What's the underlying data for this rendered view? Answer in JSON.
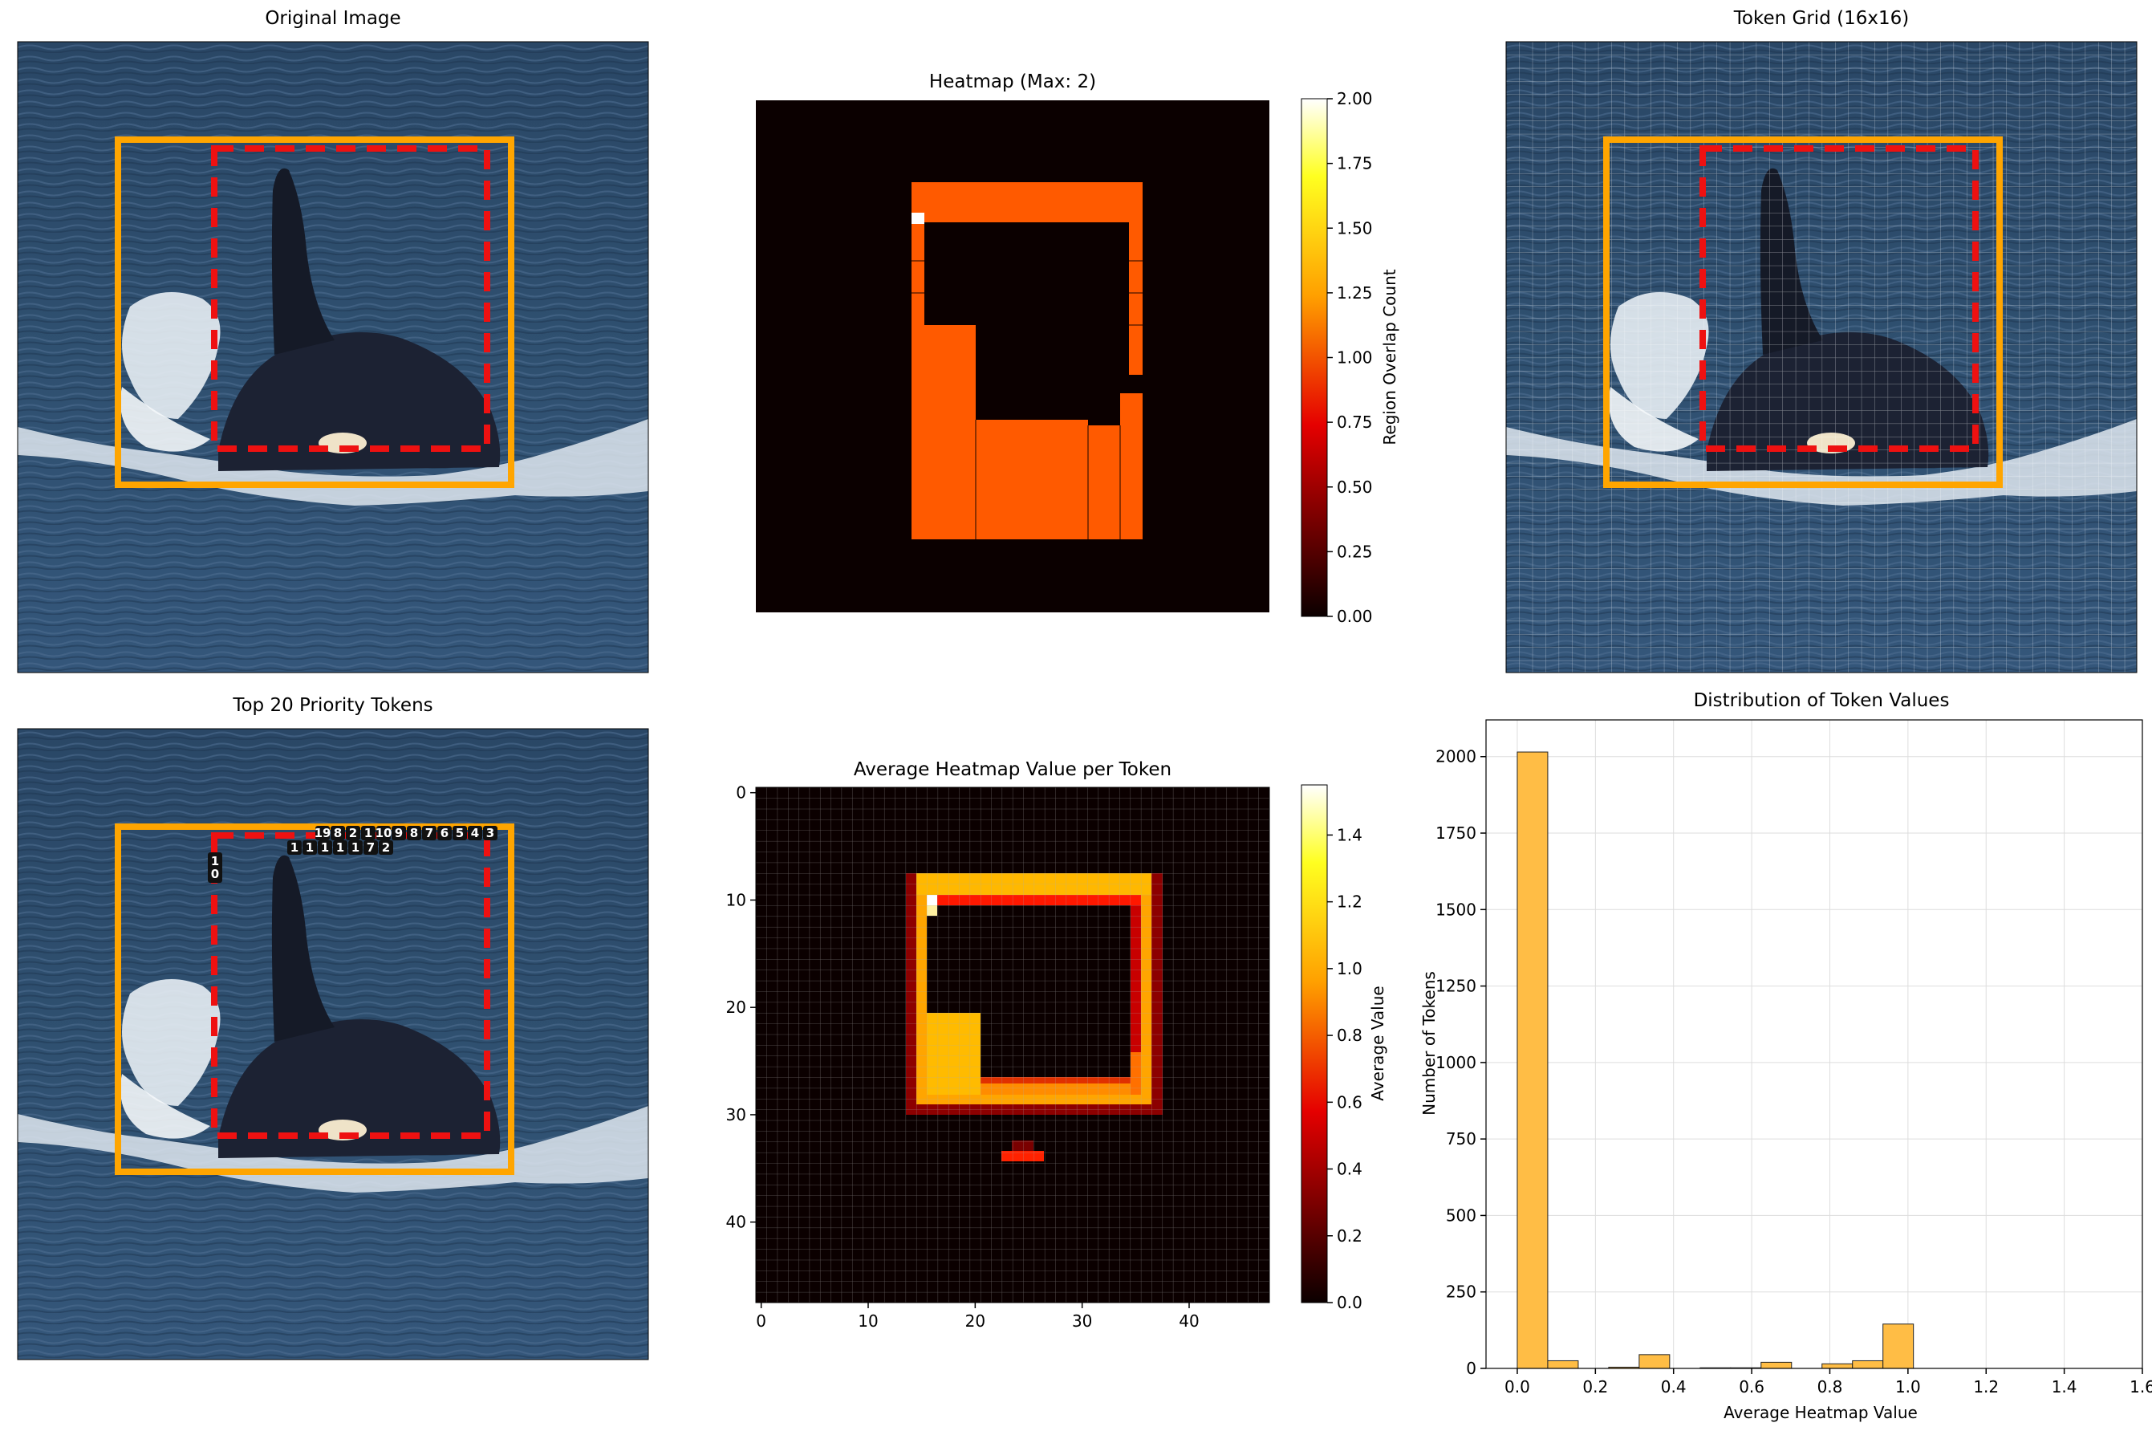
{
  "panels": {
    "original": {
      "title": "Original Image"
    },
    "heatmap": {
      "title": "Heatmap (Max: 2)",
      "colorbar_label": "Region Overlap Count"
    },
    "token_grid": {
      "title": "Token Grid (16x16)"
    },
    "top_tokens": {
      "title": "Top 20 Priority Tokens",
      "labels_row1": [
        "19",
        "8",
        "2",
        "1",
        "10",
        "9",
        "8",
        "7",
        "6",
        "5",
        "4",
        "3"
      ],
      "labels_row2": [
        "1",
        "1",
        "1",
        "1",
        "1",
        "7",
        "2"
      ],
      "labels_side": [
        "1",
        "0"
      ]
    },
    "avg_heatmap": {
      "title": "Average Heatmap Value per Token",
      "colorbar_label": "Average Value"
    },
    "distribution": {
      "title": "Distribution of Token Values",
      "xlabel": "Average Heatmap Value",
      "ylabel": "Number of Tokens"
    }
  },
  "colors": {
    "orange_box": "#ffa500",
    "red_dashed": "#ee1111",
    "heat_fill": "#ff5a00",
    "hist_fill": "#ffbd45",
    "sea": "#2e4b6b"
  },
  "chart_data": [
    {
      "type": "heatmap",
      "title": "Heatmap (Max: 2)",
      "colorbar_label": "Region Overlap Count",
      "colorbar_range": [
        0,
        2
      ],
      "colorbar_ticks": [
        "0.00",
        "0.25",
        "0.50",
        "0.75",
        "1.00",
        "1.25",
        "1.50",
        "1.75",
        "2.00"
      ],
      "max": 2
    },
    {
      "type": "heatmap",
      "title": "Average Heatmap Value per Token",
      "grid_size": [
        48,
        48
      ],
      "x_ticks": [
        "0",
        "10",
        "20",
        "30",
        "40"
      ],
      "y_ticks": [
        "0",
        "10",
        "20",
        "30",
        "40"
      ],
      "colorbar_label": "Average Value",
      "colorbar_range": [
        0,
        1.55
      ],
      "colorbar_ticks": [
        "0.0",
        "0.2",
        "0.4",
        "0.6",
        "0.8",
        "1.0",
        "1.2",
        "1.4"
      ]
    },
    {
      "type": "bar",
      "title": "Distribution of Token Values",
      "xlabel": "Average Heatmap Value",
      "ylabel": "Number of Tokens",
      "bin_width": 0.078,
      "bins": [
        {
          "x": 0.0,
          "count": 2015
        },
        {
          "x": 0.078,
          "count": 25
        },
        {
          "x": 0.234,
          "count": 4
        },
        {
          "x": 0.312,
          "count": 45
        },
        {
          "x": 0.468,
          "count": 2
        },
        {
          "x": 0.546,
          "count": 2
        },
        {
          "x": 0.624,
          "count": 20
        },
        {
          "x": 0.78,
          "count": 15
        },
        {
          "x": 0.858,
          "count": 25
        },
        {
          "x": 0.936,
          "count": 145
        }
      ],
      "xlim": [
        -0.08,
        1.6
      ],
      "ylim": [
        0,
        2120
      ],
      "x_ticks": [
        "0.0",
        "0.2",
        "0.4",
        "0.6",
        "0.8",
        "1.0",
        "1.2",
        "1.4",
        "1.6"
      ],
      "y_ticks": [
        "0",
        "250",
        "500",
        "750",
        "1000",
        "1250",
        "1500",
        "1750",
        "2000"
      ],
      "grid": true
    }
  ]
}
